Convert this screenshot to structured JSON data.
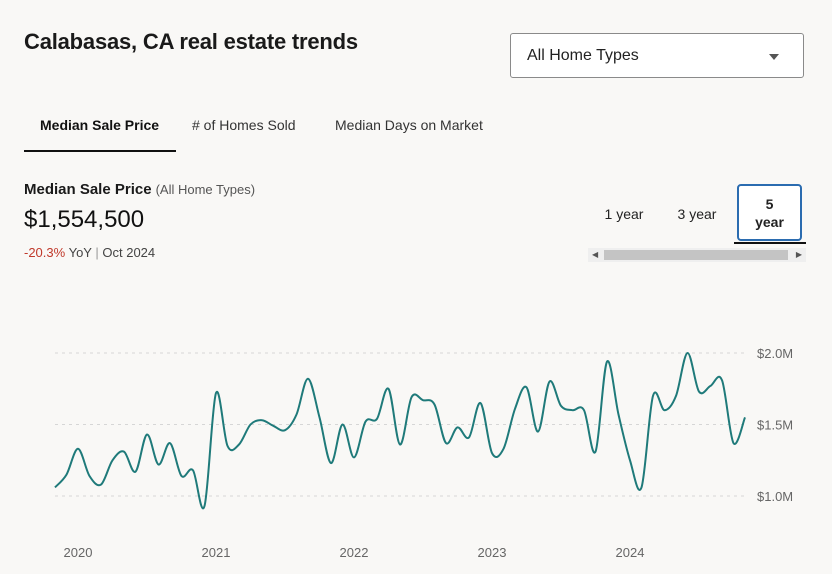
{
  "header": {
    "title": "Calabasas, CA real estate trends"
  },
  "filter": {
    "selected": "All Home Types"
  },
  "tabs": [
    {
      "label": "Median Sale Price",
      "active": true
    },
    {
      "label": "# of Homes Sold",
      "active": false
    },
    {
      "label": "Median Days on Market",
      "active": false
    }
  ],
  "metric": {
    "label": "Median Sale Price",
    "sublabel": "(All Home Types)",
    "value": "$1,554,500",
    "yoy_change": "-20.3%",
    "yoy_text": "YoY",
    "period": "Oct 2024"
  },
  "ranges": [
    {
      "label": "1 year",
      "active": false
    },
    {
      "label": "3 year",
      "active": false
    },
    {
      "label": "5 year",
      "active": true
    }
  ],
  "colors": {
    "line": "#1f7a7a",
    "grid": "#d6d6d6",
    "accent_border": "#2b6cb0",
    "negative": "#c0392b"
  },
  "chart_data": {
    "type": "line",
    "title": "",
    "xlabel": "",
    "ylabel": "",
    "ylim": [
      0.95,
      2.0
    ],
    "yticks": [
      {
        "value": 2.0,
        "label": "$2.0M"
      },
      {
        "value": 1.5,
        "label": "$1.5M"
      },
      {
        "value": 1.0,
        "label": "$1.0M"
      }
    ],
    "xticks": [
      "2020",
      "2021",
      "2022",
      "2023",
      "2024"
    ],
    "grid": true,
    "series": [
      {
        "values": [
          1.06,
          1.15,
          1.33,
          1.14,
          1.08,
          1.25,
          1.31,
          1.17,
          1.43,
          1.22,
          1.37,
          1.14,
          1.18,
          0.93,
          1.72,
          1.35,
          1.36,
          1.5,
          1.53,
          1.49,
          1.46,
          1.57,
          1.82,
          1.55,
          1.23,
          1.5,
          1.27,
          1.52,
          1.54,
          1.75,
          1.36,
          1.69,
          1.67,
          1.64,
          1.37,
          1.48,
          1.41,
          1.65,
          1.3,
          1.33,
          1.61,
          1.76,
          1.45,
          1.8,
          1.63,
          1.6,
          1.6,
          1.31,
          1.94,
          1.57,
          1.25,
          1.06,
          1.7,
          1.6,
          1.7,
          2.0,
          1.73,
          1.77,
          1.81,
          1.37,
          1.55
        ]
      }
    ]
  }
}
